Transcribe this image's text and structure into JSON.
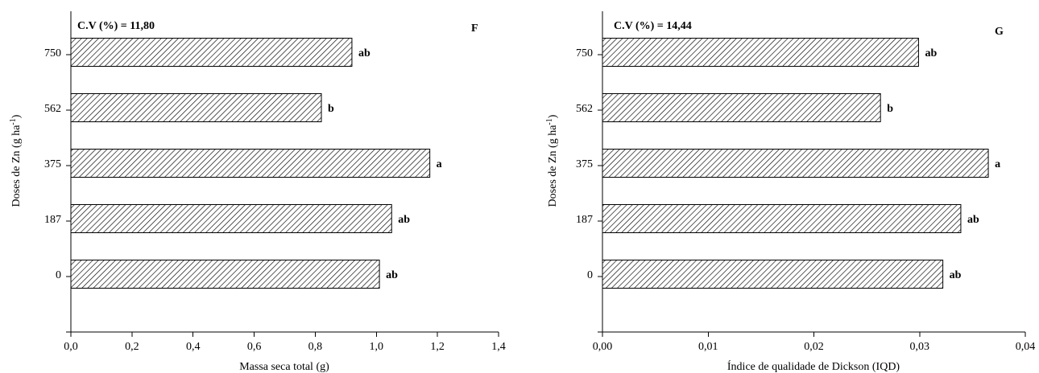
{
  "chart_data": [
    {
      "type": "bar",
      "orientation": "horizontal",
      "panel_label": "F",
      "cv_label": "C.V (%) = 11,80",
      "title": "",
      "xlabel": "Massa seca total (g)",
      "ylabel_main": "Doses de Zn (g ha",
      "ylabel_sup": "-1",
      "ylabel_close": ")",
      "categories": [
        "0",
        "187",
        "375",
        "562",
        "750"
      ],
      "values": [
        1.01,
        1.05,
        1.175,
        0.82,
        0.92
      ],
      "letters": [
        "ab",
        "ab",
        "a",
        "b",
        "ab"
      ],
      "xlim": [
        0,
        1.4
      ],
      "xticks": [
        "0,0",
        "0,2",
        "0,4",
        "0,6",
        "0,8",
        "1,0",
        "1,2",
        "1,4"
      ],
      "xtick_values": [
        0,
        0.2,
        0.4,
        0.6,
        0.8,
        1.0,
        1.2,
        1.4
      ],
      "fill_pattern": "diagonal-hatch",
      "grid": false
    },
    {
      "type": "bar",
      "orientation": "horizontal",
      "panel_label": "G",
      "cv_label": "C.V (%) = 14,44",
      "title": "",
      "xlabel": "Índice de qualidade de Dickson (IQD)",
      "ylabel_main": "Doses de Zn (g ha",
      "ylabel_sup": "-1",
      "ylabel_close": ")",
      "categories": [
        "0",
        "187",
        "375",
        "562",
        "750"
      ],
      "values": [
        0.0322,
        0.0339,
        0.0365,
        0.0263,
        0.0299
      ],
      "letters": [
        "ab",
        "ab",
        "a",
        "b",
        "ab"
      ],
      "xlim": [
        0,
        0.04
      ],
      "xticks": [
        "0,00",
        "0,01",
        "0,02",
        "0,03",
        "0,04"
      ],
      "xtick_values": [
        0,
        0.01,
        0.02,
        0.03,
        0.04
      ],
      "fill_pattern": "diagonal-hatch",
      "grid": false
    }
  ]
}
